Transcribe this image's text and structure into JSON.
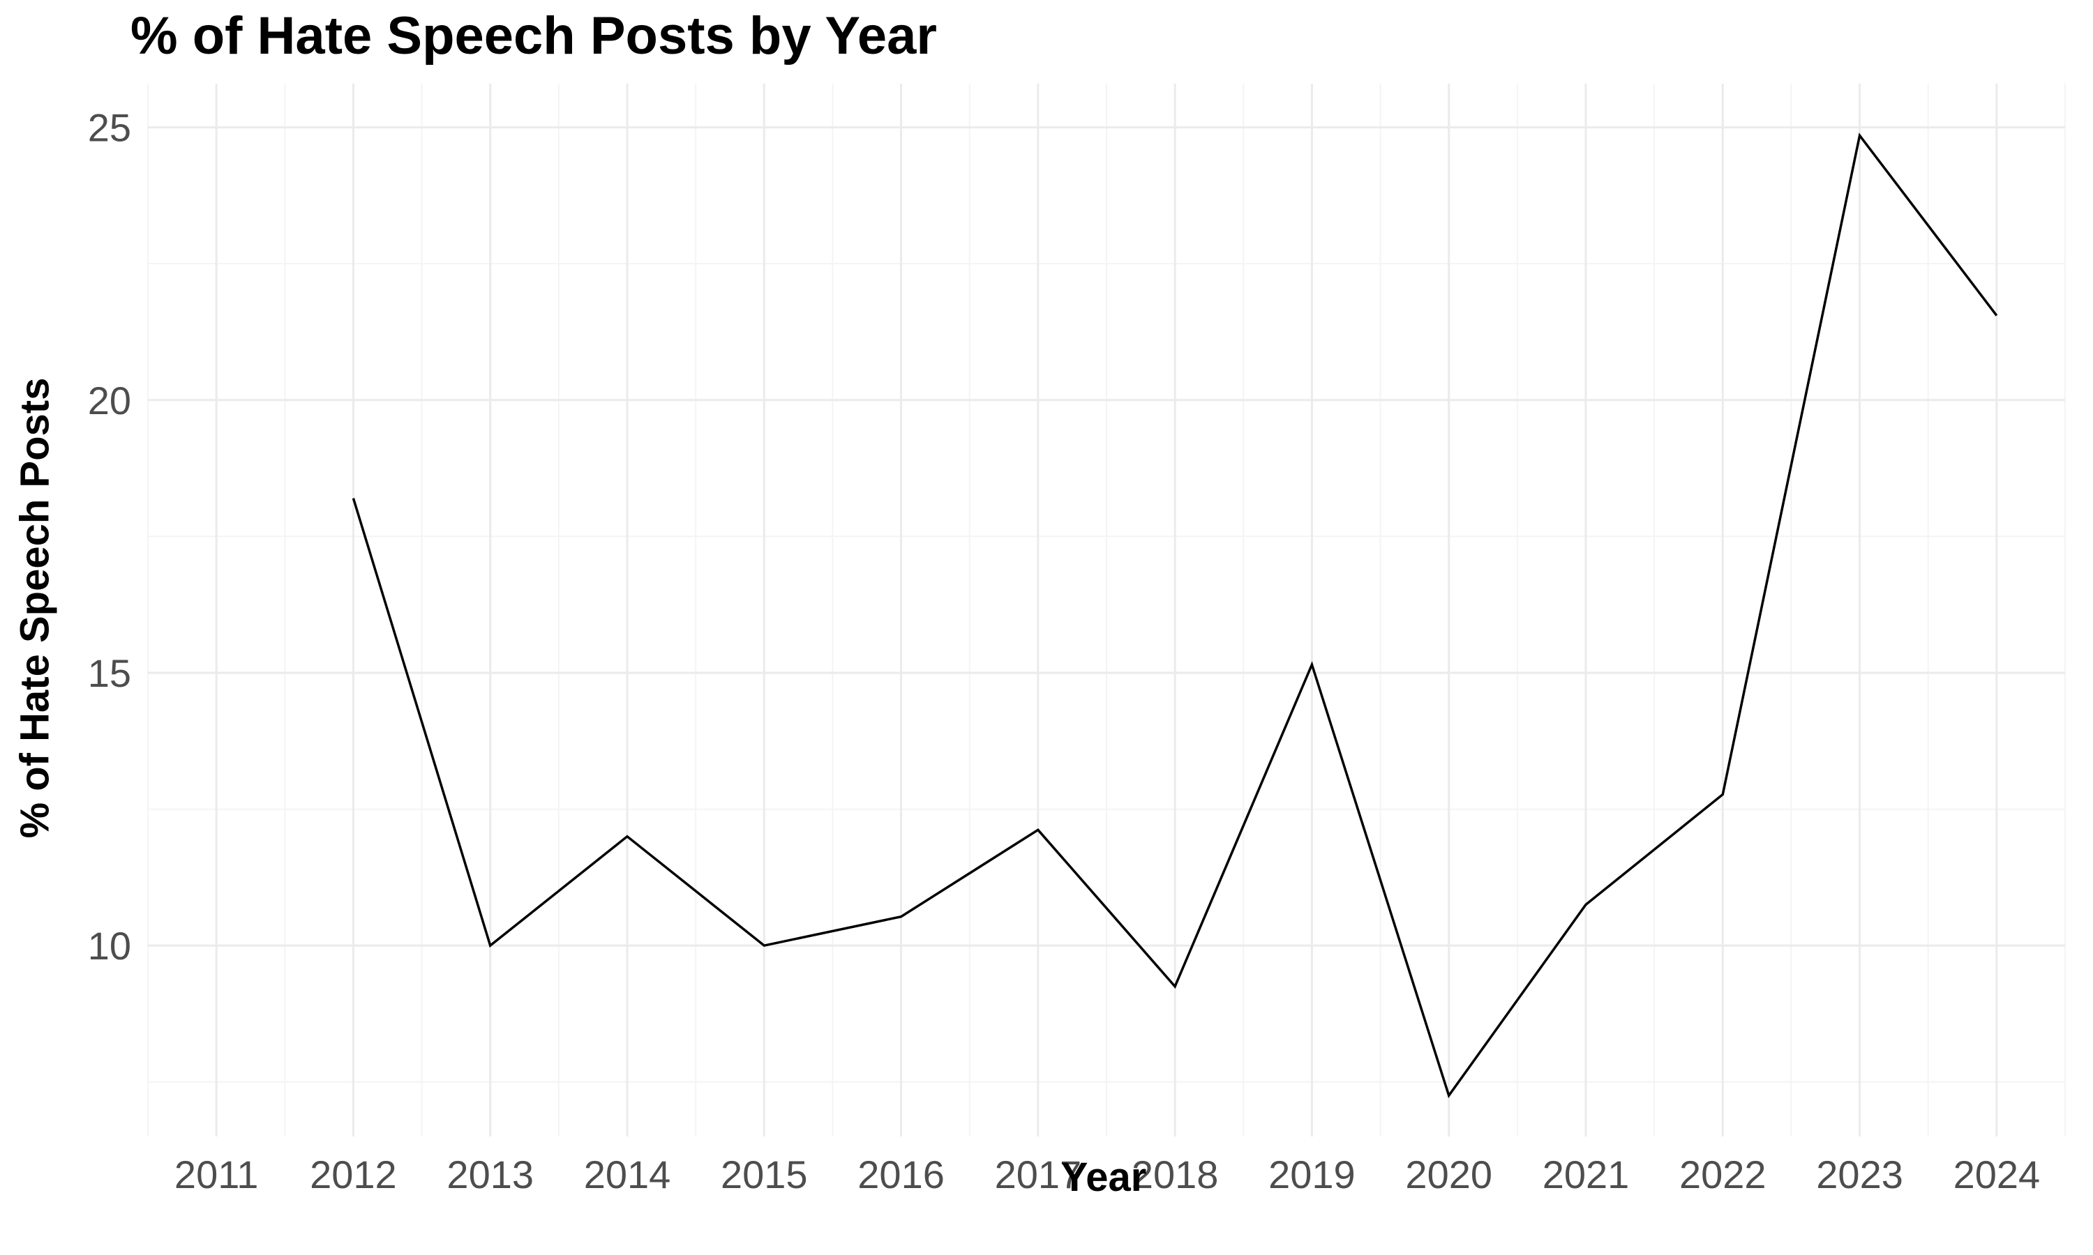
{
  "chart_data": {
    "type": "line",
    "title": "% of Hate Speech Posts by Year",
    "xlabel": "Year",
    "ylabel": "% of Hate Speech Posts",
    "x_ticks": [
      2011,
      2012,
      2013,
      2014,
      2015,
      2016,
      2017,
      2018,
      2019,
      2020,
      2021,
      2022,
      2023,
      2024
    ],
    "y_ticks": [
      10,
      15,
      20,
      25
    ],
    "xlim": [
      2010.5,
      2024.5
    ],
    "ylim": [
      6.5,
      25.8
    ],
    "grid": true,
    "x": [
      2012,
      2013,
      2014,
      2015,
      2016,
      2017,
      2018,
      2019,
      2020,
      2021,
      2022,
      2023,
      2024
    ],
    "series": [
      {
        "values": [
          18.2,
          10.0,
          12.0,
          10.0,
          10.53,
          12.12,
          9.25,
          15.15,
          7.25,
          10.75,
          12.77,
          24.85,
          21.55
        ]
      }
    ],
    "colors": {
      "line": "#000000",
      "grid_major": "#ebebeb",
      "grid_minor": "#f4f4f4",
      "tick_text": "#4d4d4d"
    }
  }
}
